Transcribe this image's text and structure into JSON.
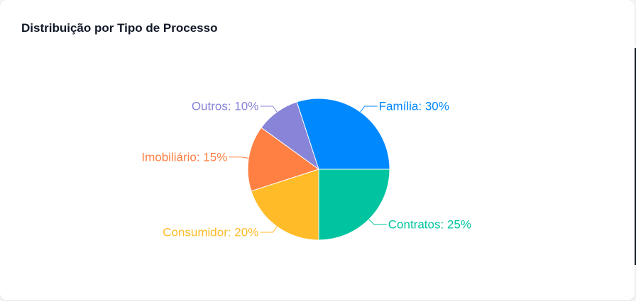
{
  "card": {
    "title": "Distribuição por Tipo de Processo"
  },
  "chart_data": {
    "type": "pie",
    "title": "Distribuição por Tipo de Processo",
    "label_format": "{name}: {percent}%",
    "slices": [
      {
        "name": "Família",
        "value": 30,
        "color": "#0088FE"
      },
      {
        "name": "Outros",
        "value": 10,
        "color": "#8884D8"
      },
      {
        "name": "Imobiliário",
        "value": 15,
        "color": "#FF8042"
      },
      {
        "name": "Consumidor",
        "value": 20,
        "color": "#FFBB28"
      },
      {
        "name": "Contratos",
        "value": 25,
        "color": "#00C49F"
      }
    ]
  }
}
